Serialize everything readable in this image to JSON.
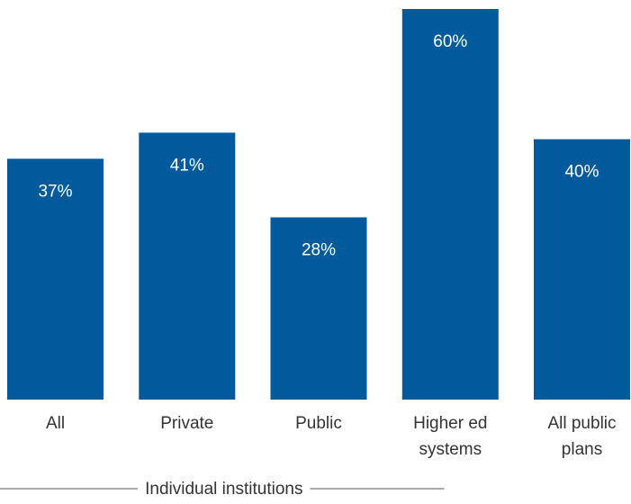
{
  "chart_data": {
    "type": "bar",
    "categories": [
      "All",
      "Private",
      "Public",
      "Higher ed\nsystems",
      "All public\nplans"
    ],
    "values": [
      37,
      41,
      28,
      60,
      40
    ],
    "data_labels": [
      "37%",
      "41%",
      "28%",
      "60%",
      "40%"
    ],
    "title": "",
    "xlabel": "",
    "ylabel": "",
    "ylim": [
      0,
      60
    ],
    "grid": false,
    "legend": "none",
    "group_label": "Individual institutions",
    "group_categories": [
      "All",
      "Private",
      "Public"
    ]
  },
  "colors": {
    "bar": "#005a9c",
    "data_label": "#ffffff",
    "tick_label": "#333333",
    "bracket_line": "#555555"
  }
}
